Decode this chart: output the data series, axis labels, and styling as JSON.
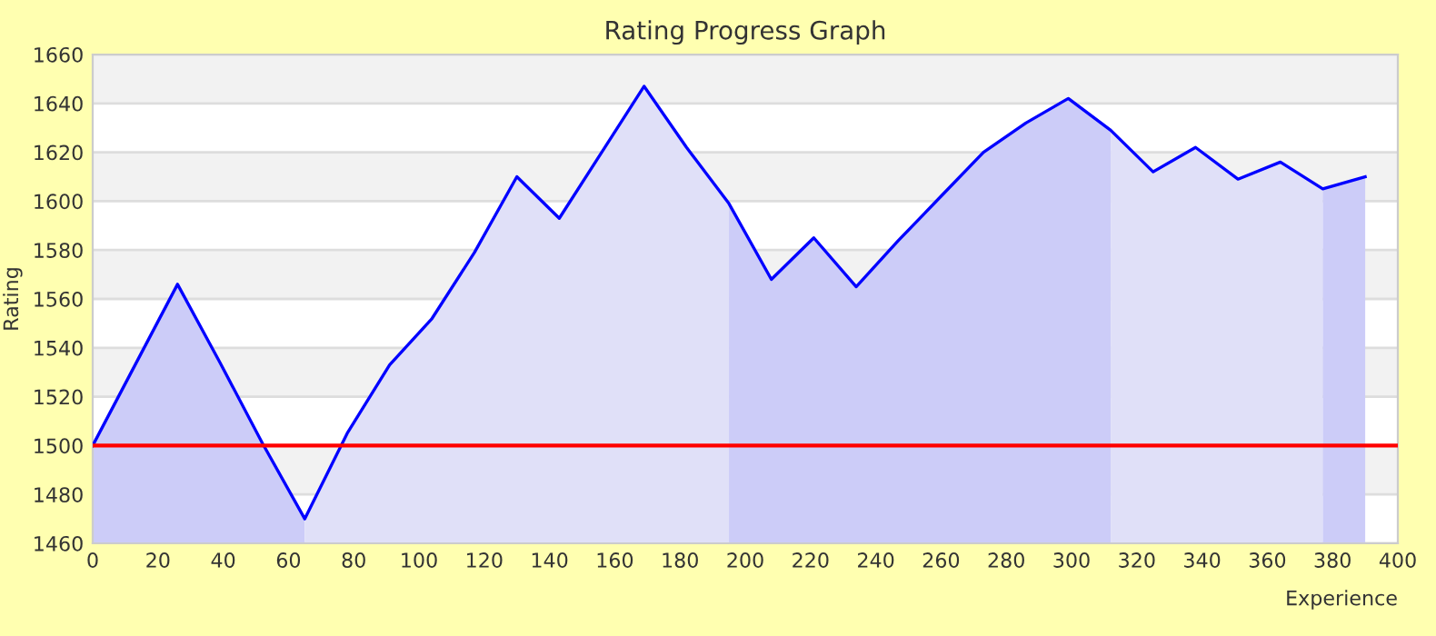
{
  "chart_data": {
    "type": "area",
    "title": "Rating Progress Graph",
    "xlabel": "Experience",
    "ylabel": "Rating",
    "series": [
      {
        "color": "#ccccf8",
        "x": [
          0,
          13,
          26,
          39,
          52,
          65
        ],
        "values": [
          1500,
          1533,
          1566,
          1534,
          1501,
          1470
        ]
      },
      {
        "color": "#e0e0f8",
        "x": [
          65,
          78,
          91,
          104,
          117,
          130,
          143,
          156,
          169,
          182,
          195
        ],
        "values": [
          1470,
          1505,
          1533,
          1552,
          1579,
          1610,
          1593,
          1620,
          1647,
          1622,
          1599
        ]
      },
      {
        "color": "#ccccf8",
        "x": [
          195,
          208,
          221,
          234,
          247,
          260,
          273,
          286,
          299,
          312
        ],
        "values": [
          1599,
          1568,
          1585,
          1565,
          1584,
          1602,
          1620,
          1632,
          1642,
          1629
        ]
      },
      {
        "color": "#e0e0f8",
        "x": [
          312,
          325,
          338,
          351,
          364,
          377
        ],
        "values": [
          1629,
          1612,
          1622,
          1609,
          1616,
          1605
        ]
      },
      {
        "color": "#ccccf8",
        "x": [
          377,
          390
        ],
        "values": [
          1605,
          1610
        ]
      },
      {
        "type": "line",
        "color": "#0000ff",
        "x": [
          0,
          13,
          26,
          39,
          52,
          65,
          78,
          91,
          104,
          117,
          130,
          143,
          156,
          169,
          182,
          195,
          208,
          221,
          234,
          247,
          260,
          273,
          286,
          299,
          312,
          325,
          338,
          351,
          364,
          377,
          390
        ],
        "values": [
          1500,
          1533,
          1566,
          1534,
          1501,
          1470,
          1505,
          1533,
          1552,
          1579,
          1610,
          1593,
          1620,
          1647,
          1622,
          1599,
          1568,
          1585,
          1565,
          1584,
          1602,
          1620,
          1632,
          1642,
          1629,
          1612,
          1622,
          1609,
          1616,
          1605,
          1610
        ]
      }
    ],
    "ref_lines": [
      {
        "axis": "y",
        "value": 1500,
        "color": "#ff0000"
      }
    ],
    "xlim": [
      0,
      400
    ],
    "xticks": [
      0,
      20,
      40,
      60,
      80,
      100,
      120,
      140,
      160,
      180,
      200,
      220,
      240,
      260,
      280,
      300,
      320,
      340,
      360,
      380,
      400
    ],
    "ylim": [
      1460,
      1660
    ],
    "yticks": [
      1460,
      1480,
      1500,
      1520,
      1540,
      1560,
      1580,
      1600,
      1620,
      1640,
      1660
    ],
    "grid": "y"
  }
}
